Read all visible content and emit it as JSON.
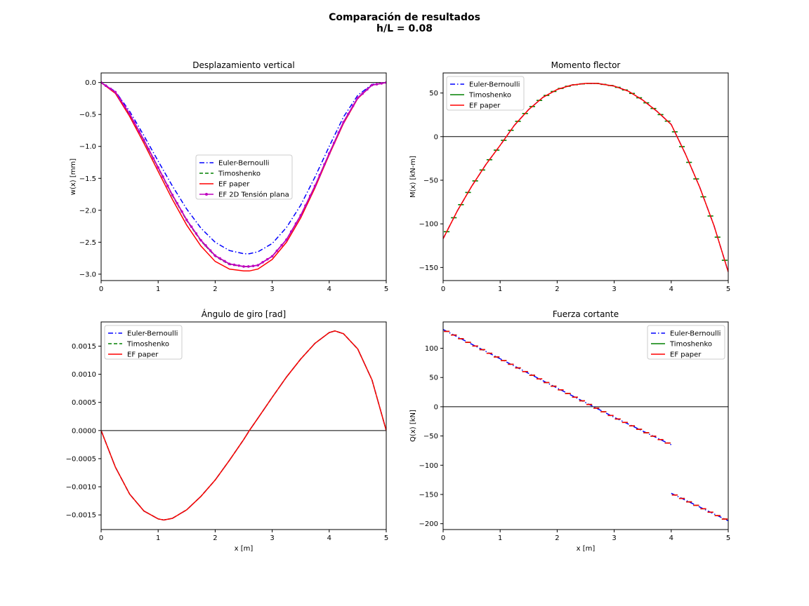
{
  "figure": {
    "suptitle_line1": "Comparación de resultados",
    "suptitle_line2": "h/L = 0.08"
  },
  "chart_data": [
    {
      "type": "line",
      "title": "Desplazamiento vertical",
      "xlabel": "",
      "ylabel": "w(x) [mm]",
      "xlim": [
        0,
        5
      ],
      "ylim": [
        -3.1,
        0.15
      ],
      "xticks": [
        "0",
        "1",
        "2",
        "3",
        "4",
        "5"
      ],
      "yticks": [
        "0.0",
        "−0.5",
        "−1.0",
        "−1.5",
        "−2.0",
        "−2.5",
        "−3.0"
      ],
      "ytick_values": [
        0,
        -0.5,
        -1.0,
        -1.5,
        -2.0,
        -2.5,
        -3.0
      ],
      "zero_line": true,
      "legend": "center",
      "series": [
        {
          "name": "Euler-Bernoulli",
          "color": "#0000ff",
          "style": "dashdot",
          "x": [
            0,
            0.25,
            0.5,
            0.75,
            1.0,
            1.25,
            1.5,
            1.75,
            2.0,
            2.25,
            2.5,
            2.6,
            2.75,
            3.0,
            3.25,
            3.5,
            3.75,
            4.0,
            4.25,
            4.5,
            4.75,
            5.0
          ],
          "values": [
            0,
            -0.14,
            -0.45,
            -0.83,
            -1.23,
            -1.62,
            -1.98,
            -2.28,
            -2.5,
            -2.63,
            -2.68,
            -2.68,
            -2.65,
            -2.52,
            -2.27,
            -1.92,
            -1.48,
            -1.0,
            -0.54,
            -0.2,
            -0.03,
            0
          ]
        },
        {
          "name": "Timoshenko",
          "color": "#008000",
          "style": "dashed",
          "x": [
            0,
            0.25,
            0.5,
            0.75,
            1.0,
            1.25,
            1.5,
            1.75,
            2.0,
            2.25,
            2.5,
            2.6,
            2.75,
            3.0,
            3.25,
            3.5,
            3.75,
            4.0,
            4.25,
            4.5,
            4.75,
            5.0
          ],
          "values": [
            0,
            -0.16,
            -0.5,
            -0.91,
            -1.34,
            -1.77,
            -2.16,
            -2.48,
            -2.72,
            -2.85,
            -2.88,
            -2.88,
            -2.86,
            -2.72,
            -2.46,
            -2.08,
            -1.62,
            -1.11,
            -0.62,
            -0.24,
            -0.04,
            0
          ]
        },
        {
          "name": "EF paper",
          "color": "#ff0000",
          "style": "solid",
          "x": [
            0,
            0.25,
            0.5,
            0.75,
            1.0,
            1.25,
            1.5,
            1.75,
            2.0,
            2.25,
            2.5,
            2.6,
            2.75,
            3.0,
            3.25,
            3.5,
            3.75,
            4.0,
            4.25,
            4.5,
            4.75,
            5.0
          ],
          "values": [
            0,
            -0.17,
            -0.53,
            -0.95,
            -1.39,
            -1.83,
            -2.23,
            -2.56,
            -2.8,
            -2.92,
            -2.95,
            -2.95,
            -2.92,
            -2.77,
            -2.5,
            -2.12,
            -1.65,
            -1.13,
            -0.64,
            -0.25,
            -0.04,
            0
          ]
        },
        {
          "name": "EF 2D Tensión plana",
          "color": "#bf00bf",
          "style": "marker",
          "x": [
            0,
            0.25,
            0.5,
            0.75,
            1.0,
            1.25,
            1.5,
            1.75,
            2.0,
            2.25,
            2.5,
            2.6,
            2.75,
            3.0,
            3.25,
            3.5,
            3.75,
            4.0,
            4.25,
            4.5,
            4.75,
            5.0
          ],
          "values": [
            0,
            -0.15,
            -0.49,
            -0.9,
            -1.33,
            -1.76,
            -2.15,
            -2.47,
            -2.71,
            -2.84,
            -2.88,
            -2.88,
            -2.86,
            -2.72,
            -2.46,
            -2.08,
            -1.62,
            -1.11,
            -0.62,
            -0.24,
            -0.04,
            0
          ]
        }
      ]
    },
    {
      "type": "line",
      "title": "Momento flector",
      "xlabel": "",
      "ylabel": "M(x) [kN-m]",
      "xlim": [
        0,
        5
      ],
      "ylim": [
        -165,
        73
      ],
      "xticks": [
        "0",
        "1",
        "2",
        "3",
        "4",
        "5"
      ],
      "yticks": [
        "50",
        "0",
        "−50",
        "−100",
        "−150"
      ],
      "ytick_values": [
        50,
        0,
        -50,
        -100,
        -150
      ],
      "zero_line": true,
      "legend": "top-left",
      "series": [
        {
          "name": "Euler-Bernoulli",
          "color": "#0000ff",
          "style": "dashdot",
          "x": [
            0,
            0.25,
            0.5,
            0.75,
            1.0,
            1.25,
            1.5,
            1.75,
            2.0,
            2.25,
            2.5,
            2.7,
            3.0,
            3.25,
            3.5,
            3.75,
            4.0,
            4.25,
            4.5,
            4.75,
            5.0
          ],
          "values": [
            -117,
            -85,
            -57,
            -32,
            -10,
            13,
            31,
            45,
            54,
            59,
            61,
            61,
            58,
            52,
            42,
            29,
            14,
            -20,
            -58,
            -102,
            -155
          ]
        },
        {
          "name": "Timoshenko",
          "color": "#008000",
          "style": "steps",
          "x": [
            0,
            0.25,
            0.5,
            0.75,
            1.0,
            1.25,
            1.5,
            1.75,
            2.0,
            2.25,
            2.5,
            2.7,
            3.0,
            3.25,
            3.5,
            3.75,
            4.0,
            4.25,
            4.5,
            4.75,
            5.0
          ],
          "values": [
            -117,
            -85,
            -57,
            -32,
            -10,
            13,
            31,
            45,
            54,
            59,
            61,
            61,
            58,
            52,
            42,
            29,
            14,
            -20,
            -58,
            -102,
            -155
          ]
        },
        {
          "name": "EF paper",
          "color": "#ff0000",
          "style": "solid",
          "x": [
            0,
            0.25,
            0.5,
            0.75,
            1.0,
            1.25,
            1.5,
            1.75,
            2.0,
            2.25,
            2.5,
            2.7,
            3.0,
            3.25,
            3.5,
            3.75,
            4.0,
            4.25,
            4.5,
            4.75,
            5.0
          ],
          "values": [
            -117,
            -85,
            -57,
            -32,
            -10,
            13,
            31,
            45,
            54,
            59,
            61,
            61,
            58,
            52,
            42,
            29,
            14,
            -20,
            -58,
            -102,
            -155
          ]
        }
      ]
    },
    {
      "type": "line",
      "title": "Ángulo de giro [rad]",
      "xlabel": "x [m]",
      "ylabel": "",
      "xlim": [
        0,
        5
      ],
      "ylim": [
        -0.00176,
        0.00193
      ],
      "xticks": [
        "0",
        "1",
        "2",
        "3",
        "4",
        "5"
      ],
      "yticks": [
        "0.0015",
        "0.0010",
        "0.0005",
        "0.0000",
        "−0.0005",
        "−0.0010",
        "−0.0015"
      ],
      "ytick_values": [
        0.0015,
        0.001,
        0.0005,
        0,
        -0.0005,
        -0.001,
        -0.0015
      ],
      "zero_line": true,
      "legend": "top-left",
      "series": [
        {
          "name": "Euler-Bernoulli",
          "color": "#0000ff",
          "style": "dashdot",
          "x": [
            0,
            0.25,
            0.5,
            0.75,
            1.0,
            1.1,
            1.25,
            1.5,
            1.75,
            2.0,
            2.25,
            2.5,
            2.6,
            2.75,
            3.0,
            3.25,
            3.5,
            3.75,
            4.0,
            4.1,
            4.25,
            4.5,
            4.75,
            5.0
          ],
          "values": [
            0,
            -0.00065,
            -0.00113,
            -0.00143,
            -0.00157,
            -0.00159,
            -0.00156,
            -0.00141,
            -0.00117,
            -0.00088,
            -0.00053,
            -0.00016,
            0,
            0.00022,
            0.00059,
            0.00095,
            0.00127,
            0.00155,
            0.00174,
            0.00177,
            0.00172,
            0.00145,
            0.0009,
            0
          ]
        },
        {
          "name": "Timoshenko",
          "color": "#008000",
          "style": "dashed",
          "x": [
            0,
            0.25,
            0.5,
            0.75,
            1.0,
            1.1,
            1.25,
            1.5,
            1.75,
            2.0,
            2.25,
            2.5,
            2.6,
            2.75,
            3.0,
            3.25,
            3.5,
            3.75,
            4.0,
            4.1,
            4.25,
            4.5,
            4.75,
            5.0
          ],
          "values": [
            0,
            -0.00065,
            -0.00113,
            -0.00143,
            -0.00157,
            -0.00159,
            -0.00156,
            -0.00141,
            -0.00117,
            -0.00088,
            -0.00053,
            -0.00016,
            0,
            0.00022,
            0.00059,
            0.00095,
            0.00127,
            0.00155,
            0.00174,
            0.00177,
            0.00172,
            0.00145,
            0.0009,
            0
          ]
        },
        {
          "name": "EF paper",
          "color": "#ff0000",
          "style": "solid",
          "x": [
            0,
            0.25,
            0.5,
            0.75,
            1.0,
            1.1,
            1.25,
            1.5,
            1.75,
            2.0,
            2.25,
            2.5,
            2.6,
            2.75,
            3.0,
            3.25,
            3.5,
            3.75,
            4.0,
            4.1,
            4.25,
            4.5,
            4.75,
            5.0
          ],
          "values": [
            0,
            -0.00065,
            -0.00113,
            -0.00143,
            -0.00157,
            -0.00159,
            -0.00156,
            -0.00141,
            -0.00117,
            -0.00088,
            -0.00053,
            -0.00016,
            0,
            0.00022,
            0.00059,
            0.00095,
            0.00127,
            0.00155,
            0.00174,
            0.00177,
            0.00172,
            0.00145,
            0.0009,
            0
          ]
        }
      ]
    },
    {
      "type": "line",
      "title": "Fuerza cortante",
      "xlabel": "x [m]",
      "ylabel": "Q(x) [kN]",
      "xlim": [
        0,
        5
      ],
      "ylim": [
        -210,
        145
      ],
      "xticks": [
        "0",
        "1",
        "2",
        "3",
        "4",
        "5"
      ],
      "yticks": [
        "100",
        "50",
        "0",
        "−50",
        "−100",
        "−150",
        "−200"
      ],
      "ytick_values": [
        100,
        50,
        0,
        -50,
        -100,
        -150,
        -200
      ],
      "zero_line": true,
      "legend": "top-right",
      "series": [
        {
          "name": "Euler-Bernoulli",
          "color": "#0000ff",
          "style": "dashdot",
          "x": [
            0,
            1,
            2,
            3,
            4,
            4,
            5
          ],
          "values": [
            132,
            82,
            32,
            -18,
            -65,
            -148,
            -195
          ]
        },
        {
          "name": "Timoshenko",
          "color": "#008000",
          "style": "steps",
          "x": [
            0,
            1,
            2,
            3,
            4,
            4,
            5
          ],
          "values": [
            132,
            82,
            32,
            -18,
            -65,
            -148,
            -195
          ]
        },
        {
          "name": "EF paper",
          "color": "#ff0000",
          "style": "steps",
          "x": [
            0,
            1,
            2,
            3,
            4,
            4,
            5
          ],
          "values": [
            132,
            82,
            32,
            -18,
            -65,
            -148,
            -195
          ]
        }
      ]
    }
  ]
}
